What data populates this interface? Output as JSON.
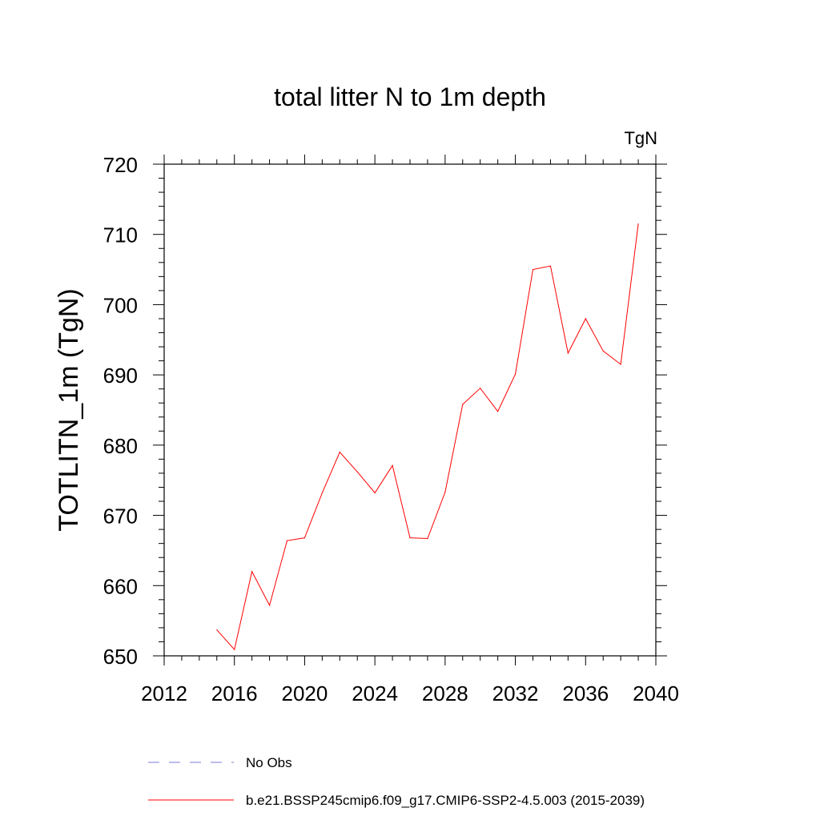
{
  "chart_data": {
    "type": "line",
    "title": "total litter N to 1m depth",
    "units_label": "TgN",
    "ylabel": "TOTLITN_1m  (TgN)",
    "xlabel": "",
    "xlim": [
      2012,
      2040
    ],
    "ylim": [
      650,
      720
    ],
    "x_ticks": [
      2012,
      2016,
      2020,
      2024,
      2028,
      2032,
      2036,
      2040
    ],
    "y_ticks": [
      650,
      660,
      670,
      680,
      690,
      700,
      710,
      720
    ],
    "x_tick_labels": [
      "2012",
      "2016",
      "2020",
      "2024",
      "2028",
      "2032",
      "2036",
      "2040"
    ],
    "y_tick_labels": [
      "650",
      "660",
      "670",
      "680",
      "690",
      "700",
      "710",
      "720"
    ],
    "series": [
      {
        "name": "b.e21.BSSP245cmip6.f09_g17.CMIP6-SSP2-4.5.003 (2015-2039)",
        "color": "#ff0000",
        "x": [
          2015,
          2016,
          2017,
          2018,
          2019,
          2020,
          2021,
          2022,
          2023,
          2024,
          2025,
          2026,
          2027,
          2028,
          2029,
          2030,
          2031,
          2032,
          2033,
          2034,
          2035,
          2036,
          2037,
          2038,
          2039
        ],
        "values": [
          653.7,
          650.9,
          662.0,
          657.2,
          666.4,
          666.8,
          673.2,
          679.0,
          676.2,
          673.2,
          677.1,
          666.8,
          666.7,
          673.3,
          685.8,
          688.1,
          684.8,
          690.1,
          705.0,
          705.5,
          693.1,
          698.0,
          693.4,
          691.5,
          711.5
        ]
      }
    ],
    "legend": {
      "placement": "bottom",
      "entries": [
        {
          "label": "No Obs",
          "color": "#7b7bd6",
          "style": "dashed"
        },
        {
          "label": "b.e21.BSSP245cmip6.f09_g17.CMIP6-SSP2-4.5.003 (2015-2039)",
          "color": "#ff0000",
          "style": "solid"
        }
      ]
    },
    "grid": false
  }
}
